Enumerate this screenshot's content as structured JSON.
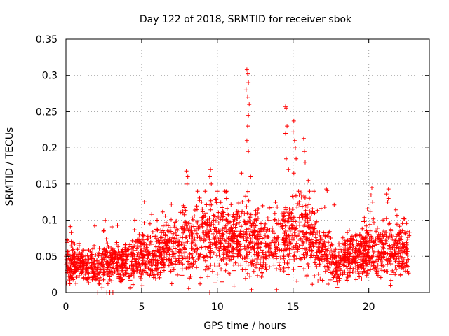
{
  "chart_data": {
    "type": "scatter",
    "title": "Day 122 of 2018, SRMTID for receiver sbok",
    "xlabel": "GPS time / hours",
    "ylabel": "SRMTID / TECUs",
    "xlim": [
      0,
      24
    ],
    "ylim": [
      0,
      0.35
    ],
    "xticks": [
      0,
      5,
      10,
      15,
      20
    ],
    "yticks": [
      0,
      0.05,
      0.1,
      0.15,
      0.2,
      0.25,
      0.3,
      0.35
    ],
    "xtick_labels": [
      "0",
      "5",
      "10",
      "15",
      "20"
    ],
    "ytick_labels": [
      "0",
      "0.05",
      "0.1",
      "0.15",
      "0.2",
      "0.25",
      "0.3",
      "0.35"
    ],
    "grid": true,
    "marker": "+",
    "color": "#ff0000",
    "series": [
      {
        "name": "SRMTID",
        "x_range": [
          0,
          22.7
        ],
        "baseline_profile": [
          [
            0.0,
            0.038
          ],
          [
            1.0,
            0.04
          ],
          [
            2.0,
            0.035
          ],
          [
            3.0,
            0.042
          ],
          [
            4.0,
            0.04
          ],
          [
            5.0,
            0.05
          ],
          [
            6.0,
            0.052
          ],
          [
            6.5,
            0.06
          ],
          [
            7.0,
            0.058
          ],
          [
            8.0,
            0.07
          ],
          [
            9.0,
            0.078
          ],
          [
            10.0,
            0.08
          ],
          [
            11.0,
            0.072
          ],
          [
            12.0,
            0.075
          ],
          [
            13.0,
            0.06
          ],
          [
            14.0,
            0.065
          ],
          [
            15.0,
            0.085
          ],
          [
            16.0,
            0.08
          ],
          [
            17.0,
            0.055
          ],
          [
            18.0,
            0.04
          ],
          [
            19.0,
            0.05
          ],
          [
            20.0,
            0.06
          ],
          [
            21.0,
            0.058
          ],
          [
            22.0,
            0.055
          ],
          [
            22.7,
            0.055
          ]
        ],
        "notable_points": [
          {
            "x": 11.95,
            "y": 0.308
          },
          {
            "x": 12.0,
            "y": 0.302
          },
          {
            "x": 12.05,
            "y": 0.29
          },
          {
            "x": 11.9,
            "y": 0.28
          },
          {
            "x": 12.0,
            "y": 0.27
          },
          {
            "x": 12.1,
            "y": 0.26
          },
          {
            "x": 12.05,
            "y": 0.245
          },
          {
            "x": 12.0,
            "y": 0.23
          },
          {
            "x": 11.95,
            "y": 0.21
          },
          {
            "x": 12.05,
            "y": 0.195
          },
          {
            "x": 11.6,
            "y": 0.165
          },
          {
            "x": 12.2,
            "y": 0.16
          },
          {
            "x": 14.5,
            "y": 0.257
          },
          {
            "x": 14.55,
            "y": 0.255
          },
          {
            "x": 14.6,
            "y": 0.23
          },
          {
            "x": 14.5,
            "y": 0.22
          },
          {
            "x": 14.55,
            "y": 0.185
          },
          {
            "x": 14.7,
            "y": 0.17
          },
          {
            "x": 15.05,
            "y": 0.237
          },
          {
            "x": 15.0,
            "y": 0.222
          },
          {
            "x": 15.1,
            "y": 0.21
          },
          {
            "x": 15.15,
            "y": 0.2
          },
          {
            "x": 15.2,
            "y": 0.185
          },
          {
            "x": 15.05,
            "y": 0.165
          },
          {
            "x": 15.7,
            "y": 0.213
          },
          {
            "x": 15.75,
            "y": 0.195
          },
          {
            "x": 15.8,
            "y": 0.18
          },
          {
            "x": 16.0,
            "y": 0.155
          },
          {
            "x": 16.1,
            "y": 0.14
          },
          {
            "x": 7.95,
            "y": 0.168
          },
          {
            "x": 8.05,
            "y": 0.16
          },
          {
            "x": 8.0,
            "y": 0.15
          },
          {
            "x": 9.55,
            "y": 0.17
          },
          {
            "x": 9.5,
            "y": 0.16
          },
          {
            "x": 9.6,
            "y": 0.15
          },
          {
            "x": 10.5,
            "y": 0.14
          },
          {
            "x": 10.6,
            "y": 0.13
          },
          {
            "x": 17.2,
            "y": 0.143
          },
          {
            "x": 17.25,
            "y": 0.141
          },
          {
            "x": 20.2,
            "y": 0.145
          },
          {
            "x": 20.15,
            "y": 0.135
          },
          {
            "x": 20.25,
            "y": 0.125
          },
          {
            "x": 21.3,
            "y": 0.143
          },
          {
            "x": 21.3,
            "y": 0.13
          },
          {
            "x": 21.25,
            "y": 0.125
          },
          {
            "x": 13.6,
            "y": 0.118
          },
          {
            "x": 13.0,
            "y": 0.12
          },
          {
            "x": 1.9,
            "y": 0.092
          },
          {
            "x": 0.35,
            "y": 0.083
          },
          {
            "x": 2.1,
            "y": 0.0
          },
          {
            "x": 2.7,
            "y": 0.0
          },
          {
            "x": 2.9,
            "y": 0.0
          },
          {
            "x": 3.1,
            "y": 0.0
          },
          {
            "x": 9.5,
            "y": 0.0
          },
          {
            "x": 11.1,
            "y": 0.009
          }
        ]
      }
    ]
  }
}
